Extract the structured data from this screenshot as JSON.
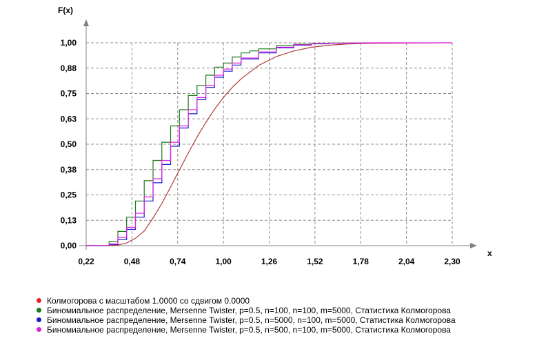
{
  "chart_data": {
    "type": "line",
    "title": "",
    "xlabel": "x",
    "ylabel": "F(x)",
    "xlim": [
      0.22,
      2.3
    ],
    "ylim": [
      0.0,
      1.0
    ],
    "grid": true,
    "legend_position": "bottom",
    "x_ticks": [
      "0,22",
      "0,48",
      "0,74",
      "1,00",
      "1,26",
      "1,52",
      "1,78",
      "2,04",
      "2,30"
    ],
    "y_ticks": [
      "0,00",
      "0,13",
      "0,25",
      "0,38",
      "0,50",
      "0,63",
      "0,75",
      "0,88",
      "1,00"
    ],
    "series": [
      {
        "name": "Колмогорова с масштабом 1.0000 со сдвигом 0.0000",
        "color": "#b03a3a",
        "legend_color": "#e8202a",
        "step": false,
        "x": [
          0.22,
          0.35,
          0.4,
          0.45,
          0.5,
          0.55,
          0.6,
          0.65,
          0.7,
          0.75,
          0.8,
          0.85,
          0.9,
          0.95,
          1.0,
          1.05,
          1.1,
          1.2,
          1.3,
          1.4,
          1.5,
          1.6,
          1.7,
          1.8,
          2.3
        ],
        "values": [
          0.0,
          0.0003,
          0.003,
          0.013,
          0.036,
          0.072,
          0.136,
          0.208,
          0.289,
          0.373,
          0.456,
          0.535,
          0.607,
          0.673,
          0.73,
          0.78,
          0.822,
          0.888,
          0.932,
          0.96,
          0.978,
          0.988,
          0.994,
          0.997,
          1.0
        ]
      },
      {
        "name": "Биномиальное распределение, Mersenne Twister, p=0.5, n=100, n=100, m=5000, Статистика Колмогорова",
        "color": "#1a7a1a",
        "legend_color": "#1a7a1a",
        "step": true,
        "x": [
          0.22,
          0.3,
          0.35,
          0.4,
          0.45,
          0.5,
          0.55,
          0.6,
          0.65,
          0.7,
          0.75,
          0.8,
          0.85,
          0.9,
          0.95,
          1.0,
          1.05,
          1.1,
          1.15,
          1.2,
          1.3,
          1.4,
          1.5,
          1.6,
          1.7
        ],
        "values": [
          0.0,
          0.0,
          0.02,
          0.07,
          0.14,
          0.22,
          0.32,
          0.42,
          0.51,
          0.59,
          0.67,
          0.74,
          0.79,
          0.84,
          0.88,
          0.9,
          0.93,
          0.95,
          0.96,
          0.97,
          0.985,
          0.993,
          0.997,
          0.999,
          1.0
        ]
      },
      {
        "name": "Биномиальное распределение, Mersenne Twister, p=0.5, n=5000, n=100, m=5000, Статистика Колмогорова",
        "color": "#1a1ad0",
        "legend_color": "#1a1ad0",
        "step": true,
        "x": [
          0.22,
          0.3,
          0.35,
          0.4,
          0.45,
          0.5,
          0.55,
          0.6,
          0.65,
          0.7,
          0.75,
          0.8,
          0.85,
          0.9,
          0.95,
          1.0,
          1.05,
          1.1,
          1.2,
          1.3,
          1.4,
          1.5,
          1.6,
          1.7,
          1.8
        ],
        "values": [
          0.0,
          0.0,
          0.005,
          0.03,
          0.08,
          0.14,
          0.22,
          0.31,
          0.4,
          0.49,
          0.58,
          0.65,
          0.72,
          0.78,
          0.83,
          0.86,
          0.89,
          0.92,
          0.95,
          0.975,
          0.988,
          0.995,
          0.998,
          0.999,
          1.0
        ]
      },
      {
        "name": "Биномиальное распределение, Mersenne Twister, p=0.5, n=500, n=100, m=5000, Статистика Колмогорова",
        "color": "#e020e0",
        "legend_color": "#e020e0",
        "step": true,
        "x": [
          0.22,
          0.3,
          0.35,
          0.4,
          0.45,
          0.5,
          0.55,
          0.6,
          0.65,
          0.7,
          0.75,
          0.8,
          0.85,
          0.9,
          0.95,
          1.0,
          1.05,
          1.1,
          1.2,
          1.3,
          1.4,
          1.5,
          1.6,
          1.7,
          1.8,
          2.3
        ],
        "values": [
          0.0,
          0.0,
          0.008,
          0.04,
          0.09,
          0.16,
          0.24,
          0.33,
          0.42,
          0.51,
          0.59,
          0.67,
          0.73,
          0.79,
          0.84,
          0.87,
          0.9,
          0.925,
          0.955,
          0.978,
          0.99,
          0.996,
          0.998,
          0.999,
          1.0,
          1.0
        ]
      }
    ]
  }
}
